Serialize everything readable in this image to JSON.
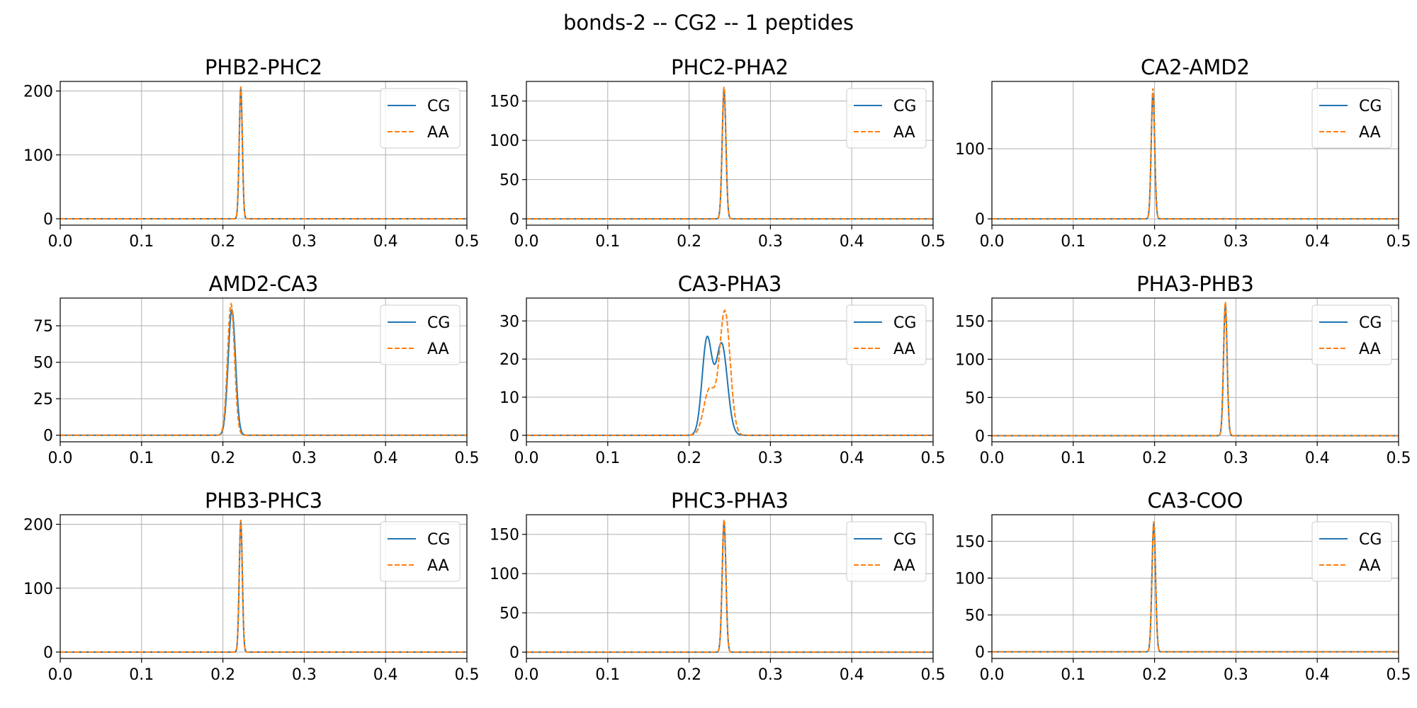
{
  "figure": {
    "title": "bonds-2 -- CG2 -- 1 peptides"
  },
  "colors": {
    "cg": "#1f77b4",
    "aa": "#ff7f0e"
  },
  "chart_data": [
    {
      "type": "line",
      "title": "PHB2-PHC2",
      "xlim": [
        0,
        0.5
      ],
      "ylim": [
        -10,
        215
      ],
      "xticks": [
        "0.0",
        "0.1",
        "0.2",
        "0.3",
        "0.4",
        "0.5"
      ],
      "xtick_values": [
        0,
        0.1,
        0.2,
        0.3,
        0.4,
        0.5
      ],
      "yticks": [
        "0",
        "100",
        "200"
      ],
      "ytick_values": [
        0,
        100,
        200
      ],
      "grid": true,
      "legend": "upper right",
      "series": [
        {
          "name": "CG",
          "style": "solid",
          "peaks": [
            {
              "center": 0.222,
              "height": 204,
              "sigma": 0.0019
            }
          ]
        },
        {
          "name": "AA",
          "style": "dashed",
          "peaks": [
            {
              "center": 0.222,
              "height": 207,
              "sigma": 0.0019
            }
          ]
        }
      ]
    },
    {
      "type": "line",
      "title": "PHC2-PHA2",
      "xlim": [
        0,
        0.5
      ],
      "ylim": [
        -8,
        175
      ],
      "xticks": [
        "0.0",
        "0.1",
        "0.2",
        "0.3",
        "0.4",
        "0.5"
      ],
      "xtick_values": [
        0,
        0.1,
        0.2,
        0.3,
        0.4,
        0.5
      ],
      "yticks": [
        "0",
        "50",
        "100",
        "150"
      ],
      "ytick_values": [
        0,
        50,
        100,
        150
      ],
      "grid": true,
      "legend": "upper right",
      "series": [
        {
          "name": "CG",
          "style": "solid",
          "peaks": [
            {
              "center": 0.243,
              "height": 165,
              "sigma": 0.0023
            }
          ]
        },
        {
          "name": "AA",
          "style": "dashed",
          "peaks": [
            {
              "center": 0.243,
              "height": 168,
              "sigma": 0.0023
            }
          ]
        }
      ]
    },
    {
      "type": "line",
      "title": "CA2-AMD2",
      "xlim": [
        0,
        0.5
      ],
      "ylim": [
        -9,
        196
      ],
      "xticks": [
        "0.0",
        "0.1",
        "0.2",
        "0.3",
        "0.4",
        "0.5"
      ],
      "xtick_values": [
        0,
        0.1,
        0.2,
        0.3,
        0.4,
        0.5
      ],
      "yticks": [
        "0",
        "100"
      ],
      "ytick_values": [
        0,
        100
      ],
      "grid": true,
      "legend": "upper right",
      "series": [
        {
          "name": "CG",
          "style": "solid",
          "peaks": [
            {
              "center": 0.198,
              "height": 180,
              "sigma": 0.0021
            }
          ]
        },
        {
          "name": "AA",
          "style": "dashed",
          "peaks": [
            {
              "center": 0.198,
              "height": 186,
              "sigma": 0.0021
            }
          ]
        }
      ]
    },
    {
      "type": "line",
      "title": "AMD2-CA3",
      "xlim": [
        0,
        0.5
      ],
      "ylim": [
        -4.5,
        94
      ],
      "xticks": [
        "0.0",
        "0.1",
        "0.2",
        "0.3",
        "0.4",
        "0.5"
      ],
      "xtick_values": [
        0,
        0.1,
        0.2,
        0.3,
        0.4,
        0.5
      ],
      "yticks": [
        "0",
        "25",
        "50",
        "75"
      ],
      "ytick_values": [
        0,
        25,
        50,
        75
      ],
      "grid": true,
      "legend": "upper right",
      "series": [
        {
          "name": "CG",
          "style": "solid",
          "peaks": [
            {
              "center": 0.211,
              "height": 86,
              "sigma": 0.0045
            }
          ]
        },
        {
          "name": "AA",
          "style": "dashed",
          "peaks": [
            {
              "center": 0.21,
              "height": 90,
              "sigma": 0.0043
            }
          ]
        }
      ]
    },
    {
      "type": "line",
      "title": "CA3-PHA3",
      "xlim": [
        0,
        0.5
      ],
      "ylim": [
        -1.7,
        36
      ],
      "xticks": [
        "0.0",
        "0.1",
        "0.2",
        "0.3",
        "0.4",
        "0.5"
      ],
      "xtick_values": [
        0,
        0.1,
        0.2,
        0.3,
        0.4,
        0.5
      ],
      "yticks": [
        "0",
        "10",
        "20",
        "30"
      ],
      "ytick_values": [
        0,
        10,
        20,
        30
      ],
      "grid": true,
      "legend": "upper right",
      "series": [
        {
          "name": "CG",
          "style": "solid",
          "peaks": [
            {
              "center": 0.222,
              "height": 25,
              "sigma": 0.006
            },
            {
              "center": 0.24,
              "height": 24,
              "sigma": 0.007
            }
          ]
        },
        {
          "name": "AA",
          "style": "dashed",
          "peaks": [
            {
              "center": 0.244,
              "height": 32.5,
              "sigma": 0.0065
            },
            {
              "center": 0.225,
              "height": 12,
              "sigma": 0.007
            }
          ]
        }
      ]
    },
    {
      "type": "line",
      "title": "PHA3-PHB3",
      "xlim": [
        0,
        0.5
      ],
      "ylim": [
        -8,
        180
      ],
      "xticks": [
        "0.0",
        "0.1",
        "0.2",
        "0.3",
        "0.4",
        "0.5"
      ],
      "xtick_values": [
        0,
        0.1,
        0.2,
        0.3,
        0.4,
        0.5
      ],
      "yticks": [
        "0",
        "50",
        "100",
        "150"
      ],
      "ytick_values": [
        0,
        50,
        100,
        150
      ],
      "grid": true,
      "legend": "upper right",
      "series": [
        {
          "name": "CG",
          "style": "solid",
          "peaks": [
            {
              "center": 0.287,
              "height": 172,
              "sigma": 0.0022
            }
          ]
        },
        {
          "name": "AA",
          "style": "dashed",
          "peaks": [
            {
              "center": 0.287,
              "height": 175,
              "sigma": 0.0022
            }
          ]
        }
      ]
    },
    {
      "type": "line",
      "title": "PHB3-PHC3",
      "xlim": [
        0,
        0.5
      ],
      "ylim": [
        -10,
        215
      ],
      "xticks": [
        "0.0",
        "0.1",
        "0.2",
        "0.3",
        "0.4",
        "0.5"
      ],
      "xtick_values": [
        0,
        0.1,
        0.2,
        0.3,
        0.4,
        0.5
      ],
      "yticks": [
        "0",
        "100",
        "200"
      ],
      "ytick_values": [
        0,
        100,
        200
      ],
      "grid": true,
      "legend": "upper right",
      "series": [
        {
          "name": "CG",
          "style": "solid",
          "peaks": [
            {
              "center": 0.222,
              "height": 204,
              "sigma": 0.0019
            }
          ]
        },
        {
          "name": "AA",
          "style": "dashed",
          "peaks": [
            {
              "center": 0.222,
              "height": 207,
              "sigma": 0.0019
            }
          ]
        }
      ]
    },
    {
      "type": "line",
      "title": "PHC3-PHA3",
      "xlim": [
        0,
        0.5
      ],
      "ylim": [
        -8,
        175
      ],
      "xticks": [
        "0.0",
        "0.1",
        "0.2",
        "0.3",
        "0.4",
        "0.5"
      ],
      "xtick_values": [
        0,
        0.1,
        0.2,
        0.3,
        0.4,
        0.5
      ],
      "yticks": [
        "0",
        "50",
        "100",
        "150"
      ],
      "ytick_values": [
        0,
        50,
        100,
        150
      ],
      "grid": true,
      "legend": "upper right",
      "series": [
        {
          "name": "CG",
          "style": "solid",
          "peaks": [
            {
              "center": 0.243,
              "height": 166,
              "sigma": 0.0023
            }
          ]
        },
        {
          "name": "AA",
          "style": "dashed",
          "peaks": [
            {
              "center": 0.243,
              "height": 169,
              "sigma": 0.0023
            }
          ]
        }
      ]
    },
    {
      "type": "line",
      "title": "CA3-COO",
      "xlim": [
        0,
        0.5
      ],
      "ylim": [
        -9,
        186
      ],
      "xticks": [
        "0.0",
        "0.1",
        "0.2",
        "0.3",
        "0.4",
        "0.5"
      ],
      "xtick_values": [
        0,
        0.1,
        0.2,
        0.3,
        0.4,
        0.5
      ],
      "yticks": [
        "0",
        "50",
        "100",
        "150"
      ],
      "ytick_values": [
        0,
        50,
        100,
        150
      ],
      "grid": true,
      "legend": "upper right",
      "series": [
        {
          "name": "CG",
          "style": "solid",
          "peaks": [
            {
              "center": 0.199,
              "height": 174,
              "sigma": 0.0022
            }
          ]
        },
        {
          "name": "AA",
          "style": "dashed",
          "peaks": [
            {
              "center": 0.199,
              "height": 177,
              "sigma": 0.0022
            }
          ]
        }
      ]
    }
  ]
}
